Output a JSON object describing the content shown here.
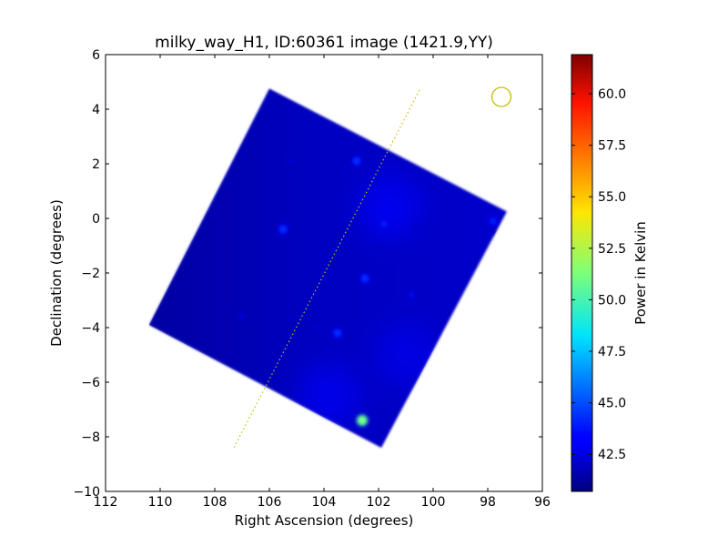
{
  "chart_data": {
    "type": "heatmap",
    "title": "milky_way_H1, ID:60361 image (1421.9,YY)",
    "xlabel": "Right Ascension (degrees)",
    "ylabel": "Declination (degrees)",
    "colorbar_label": "Power in Kelvin",
    "xlim": [
      112,
      96
    ],
    "ylim": [
      -10,
      6
    ],
    "xticks": [
      112,
      110,
      108,
      106,
      104,
      102,
      100,
      98,
      96
    ],
    "yticks": [
      6,
      4,
      2,
      0,
      -2,
      -4,
      -6,
      -8,
      -10
    ],
    "colorbar_range": [
      40.7,
      61.9
    ],
    "colorbar_ticks": [
      "42.5",
      "45.0",
      "47.5",
      "50.0",
      "52.5",
      "55.0",
      "57.5",
      "60.0"
    ],
    "colormap": "jet",
    "background_level": 42.3,
    "grid": false,
    "footprint_corners": [
      [
        106.0,
        4.75
      ],
      [
        97.3,
        0.25
      ],
      [
        101.9,
        -8.4
      ],
      [
        110.4,
        -3.9
      ]
    ],
    "sources": [
      {
        "x": 102.6,
        "y": -7.4,
        "value": 52
      },
      {
        "x": 103.5,
        "y": -4.2,
        "value": 45
      },
      {
        "x": 102.8,
        "y": 2.1,
        "value": 45
      },
      {
        "x": 105.5,
        "y": -0.4,
        "value": 45
      },
      {
        "x": 102.5,
        "y": -2.2,
        "value": 45
      },
      {
        "x": 101.8,
        "y": -0.2,
        "value": 44.5
      },
      {
        "x": 97.8,
        "y": -0.1,
        "value": 44.5
      },
      {
        "x": 100.8,
        "y": -2.8,
        "value": 44
      },
      {
        "x": 105.2,
        "y": 2.1,
        "value": 43.5
      },
      {
        "x": 100.6,
        "y": -0.3,
        "value": 43.5
      },
      {
        "x": 97.6,
        "y": -0.6,
        "value": 43.5
      },
      {
        "x": 104.2,
        "y": -4.0,
        "value": 43.5
      },
      {
        "x": 107.0,
        "y": -3.6,
        "value": 43.5
      }
    ],
    "diffuse": [
      {
        "x": 101.6,
        "y": 0.4,
        "value": 43.5
      },
      {
        "x": 103.8,
        "y": -6.5,
        "value": 43.2
      },
      {
        "x": 101.0,
        "y": -5.0,
        "value": 43.0
      }
    ],
    "galactic_plane": {
      "from": [
        100.5,
        4.7
      ],
      "to": [
        107.3,
        -8.4
      ],
      "style": "dotted",
      "color": "#bfbf00"
    },
    "beam_marker": {
      "x": 97.5,
      "y": 4.45,
      "color": "#bfbf00"
    }
  }
}
